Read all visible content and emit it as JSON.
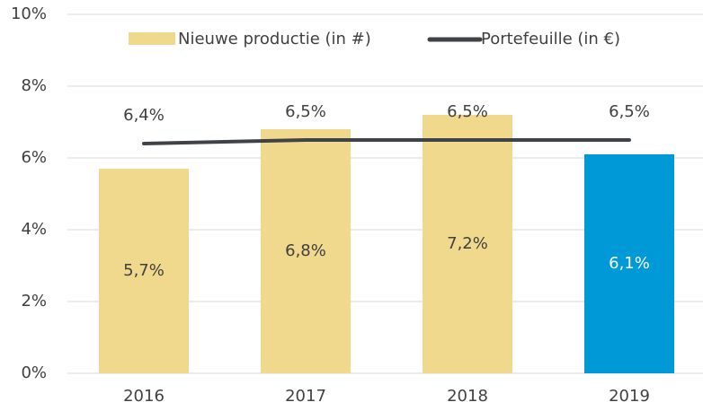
{
  "chart_data": {
    "type": "bar",
    "categories": [
      "2016",
      "2017",
      "2018",
      "2019"
    ],
    "series": [
      {
        "name": "Nieuwe productie (in #)",
        "type": "bar",
        "color": "#f0d98c",
        "colors": [
          "#f0d98c",
          "#f0d98c",
          "#f0d98c",
          "#0099d8"
        ],
        "label_colors": [
          "#404040",
          "#404040",
          "#404040",
          "#ffffff"
        ],
        "values": [
          5.7,
          6.8,
          7.2,
          6.1
        ],
        "value_labels": [
          "5,7%",
          "6,8%",
          "7,2%",
          "6,1%"
        ]
      },
      {
        "name": "Portefeuille (in €)",
        "type": "line",
        "color": "#3f4347",
        "values": [
          6.4,
          6.5,
          6.5,
          6.5
        ],
        "value_labels": [
          "6,4%",
          "6,5%",
          "6,5%",
          "6,5%"
        ]
      }
    ],
    "ylim": [
      0,
      10
    ],
    "yticks": [
      {
        "value": 0,
        "label": "0%"
      },
      {
        "value": 2,
        "label": "2%"
      },
      {
        "value": 4,
        "label": "4%"
      },
      {
        "value": 6,
        "label": "6%"
      },
      {
        "value": 8,
        "label": "8%"
      },
      {
        "value": 10,
        "label": "10%"
      }
    ],
    "grid": true,
    "legend": "top"
  }
}
